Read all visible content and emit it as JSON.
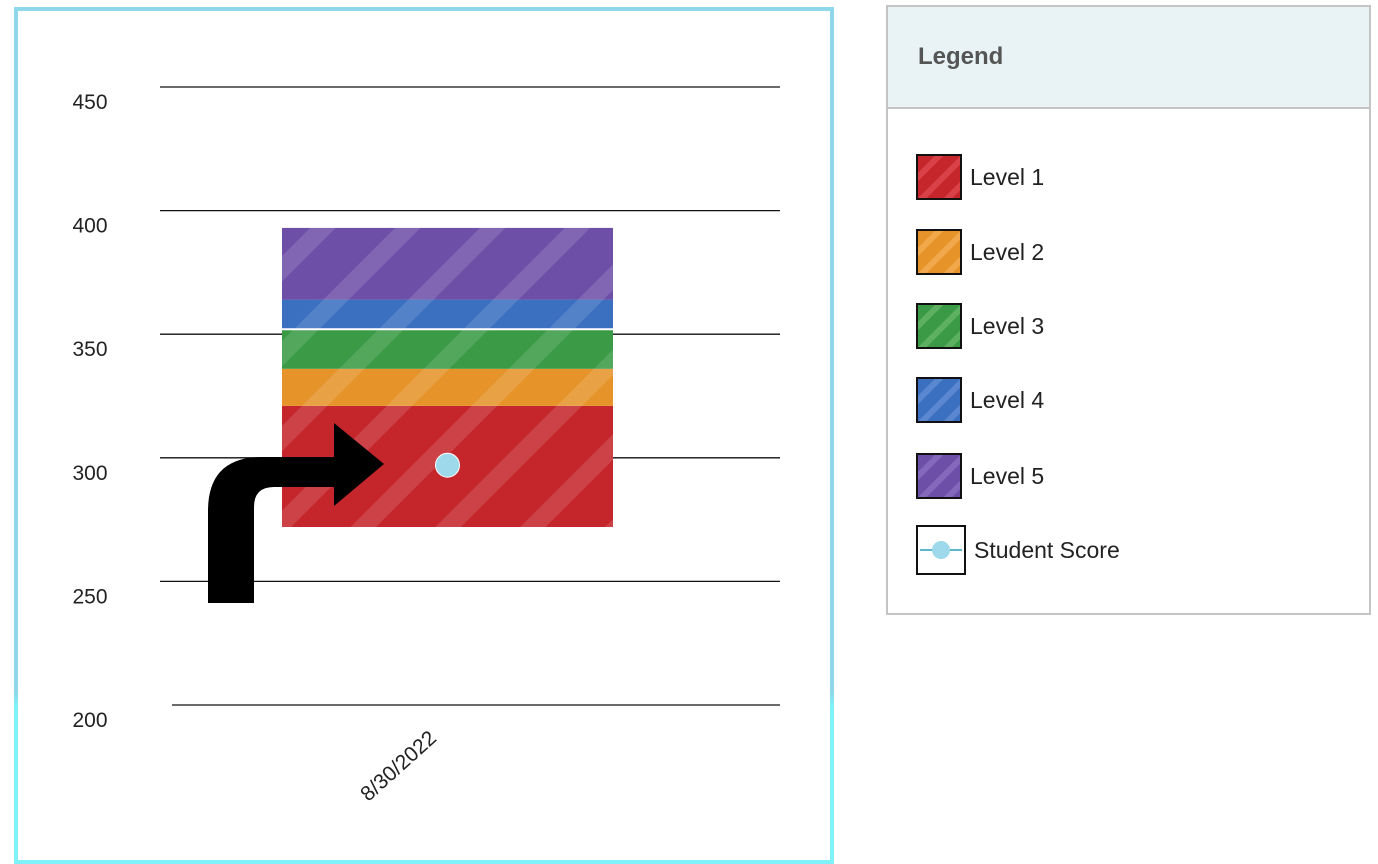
{
  "chart_data": {
    "type": "bar",
    "categories": [
      "8/30/2022"
    ],
    "ylim": [
      200,
      450
    ],
    "yticks": [
      200,
      250,
      300,
      350,
      400,
      450
    ],
    "grid": true,
    "bands": [
      {
        "name": "Level 1",
        "from": 272,
        "to": 321,
        "color": "#c4262c"
      },
      {
        "name": "Level 2",
        "from": 321,
        "to": 336,
        "color": "#e6932a"
      },
      {
        "name": "Level 3",
        "from": 336,
        "to": 352,
        "color": "#3a9a45"
      },
      {
        "name": "Level 4",
        "from": 352,
        "to": 364,
        "color": "#3b6fc0"
      },
      {
        "name": "Level 5",
        "from": 364,
        "to": 393,
        "color": "#6e4fa8"
      }
    ],
    "series": [
      {
        "name": "Student Score",
        "values": [
          297
        ]
      }
    ],
    "legend_position": "right"
  },
  "legend": {
    "title": "Legend",
    "items": [
      {
        "label": "Level 1",
        "color": "#c4262c"
      },
      {
        "label": "Level 2",
        "color": "#e6932a"
      },
      {
        "label": "Level 3",
        "color": "#3a9a45"
      },
      {
        "label": "Level 4",
        "color": "#3b6fc0"
      },
      {
        "label": "Level 5",
        "color": "#6e4fa8"
      }
    ],
    "score_label": "Student Score",
    "score_color": "#9dd9ea"
  },
  "annotation": {
    "icon": "turn-right-arrow-icon",
    "color": "#000000"
  }
}
